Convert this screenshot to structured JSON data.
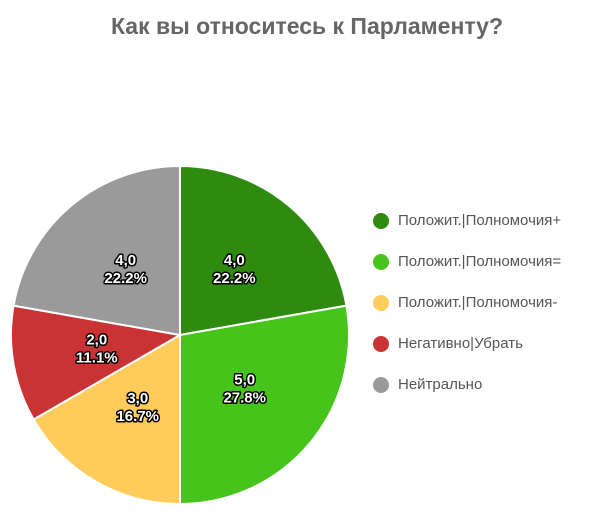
{
  "chart_data": {
    "type": "pie",
    "title": "Как вы относитесь к Парламенту?",
    "categories": [
      "Положит.|Полномочия+",
      "Положит.|Полномочия=",
      "Положит.|Полномочия-",
      "Негативно|Убрать",
      "Нейтрально"
    ],
    "values": [
      4,
      5,
      3,
      2,
      4
    ],
    "value_labels": [
      "4,0",
      "5,0",
      "3,0",
      "2,0",
      "4,0"
    ],
    "percent_labels": [
      "22.2%",
      "27.8%",
      "16.7%",
      "11.1%",
      "22.2%"
    ],
    "colors": [
      "#2f8a10",
      "#46c41c",
      "#ffcb5a",
      "#c93333",
      "#9a9a9a"
    ],
    "legend": "right"
  }
}
